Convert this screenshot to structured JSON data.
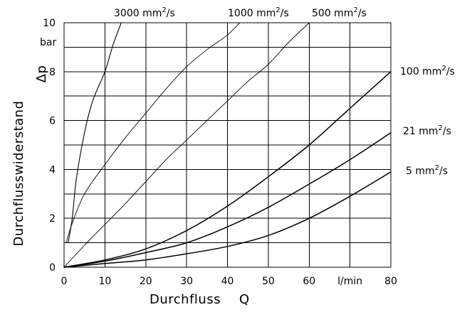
{
  "chart_data": {
    "type": "line",
    "title": "",
    "xlabel": "Durchfluss",
    "xsymbol": "Q",
    "ylabel": "Durchflusswiderstand",
    "ysymbol": "Δp",
    "x_unit": "l/min",
    "y_unit": "bar",
    "xlim": [
      0,
      80
    ],
    "ylim": [
      0,
      10
    ],
    "x_ticks": [
      "0",
      "10",
      "20",
      "30",
      "40",
      "50",
      "60",
      "l/min",
      "80"
    ],
    "y_ticks": [
      "0",
      "2",
      "4",
      "6",
      "8",
      "10"
    ],
    "grid": true,
    "legend": "inline labels",
    "series": [
      {
        "name": "3000 mm²/s",
        "label_base": "3000 mm",
        "label_exp": "2",
        "label_tail": "/s",
        "points": [
          [
            1,
            1
          ],
          [
            2,
            2
          ],
          [
            3,
            3.6
          ],
          [
            5,
            5.5
          ],
          [
            7,
            6.8
          ],
          [
            10,
            8
          ],
          [
            12,
            9.1
          ],
          [
            14,
            10
          ]
        ]
      },
      {
        "name": "1000 mm²/s",
        "label_base": "1000 mm",
        "label_exp": "2",
        "label_tail": "/s",
        "points": [
          [
            0.5,
            1
          ],
          [
            2,
            1.8
          ],
          [
            5,
            3
          ],
          [
            10,
            4.2
          ],
          [
            15,
            5.3
          ],
          [
            20,
            6.3
          ],
          [
            25,
            7.3
          ],
          [
            30,
            8.2
          ],
          [
            35,
            8.9
          ],
          [
            40,
            9.5
          ],
          [
            43,
            10
          ]
        ]
      },
      {
        "name": "500 mm²/s",
        "label_base": "500 mm",
        "label_exp": "2",
        "label_tail": "/s",
        "points": [
          [
            0,
            0
          ],
          [
            5,
            0.9
          ],
          [
            10,
            1.75
          ],
          [
            15,
            2.6
          ],
          [
            20,
            3.5
          ],
          [
            25,
            4.4
          ],
          [
            30,
            5.2
          ],
          [
            35,
            6
          ],
          [
            40,
            6.8
          ],
          [
            45,
            7.6
          ],
          [
            50,
            8.3
          ],
          [
            55,
            9.2
          ],
          [
            60,
            10
          ]
        ]
      },
      {
        "name": "100 mm²/s",
        "label_base": "100 mm",
        "label_exp": "2",
        "label_tail": "/s",
        "points": [
          [
            0,
            0
          ],
          [
            10,
            0.3
          ],
          [
            20,
            0.75
          ],
          [
            30,
            1.5
          ],
          [
            40,
            2.5
          ],
          [
            50,
            3.7
          ],
          [
            60,
            5
          ],
          [
            70,
            6.5
          ],
          [
            80,
            8
          ]
        ]
      },
      {
        "name": "21 mm²/s",
        "label_base": "21 mm",
        "label_exp": "2",
        "label_tail": "/s",
        "points": [
          [
            0,
            0
          ],
          [
            10,
            0.25
          ],
          [
            20,
            0.6
          ],
          [
            30,
            1
          ],
          [
            40,
            1.65
          ],
          [
            50,
            2.45
          ],
          [
            60,
            3.4
          ],
          [
            70,
            4.4
          ],
          [
            80,
            5.5
          ]
        ]
      },
      {
        "name": "5 mm²/s",
        "label_base": "5 mm",
        "label_exp": "2",
        "label_tail": "/s",
        "points": [
          [
            0,
            0
          ],
          [
            10,
            0.15
          ],
          [
            20,
            0.3
          ],
          [
            30,
            0.55
          ],
          [
            40,
            0.85
          ],
          [
            50,
            1.3
          ],
          [
            60,
            2
          ],
          [
            70,
            2.9
          ],
          [
            80,
            3.9
          ]
        ]
      }
    ]
  }
}
